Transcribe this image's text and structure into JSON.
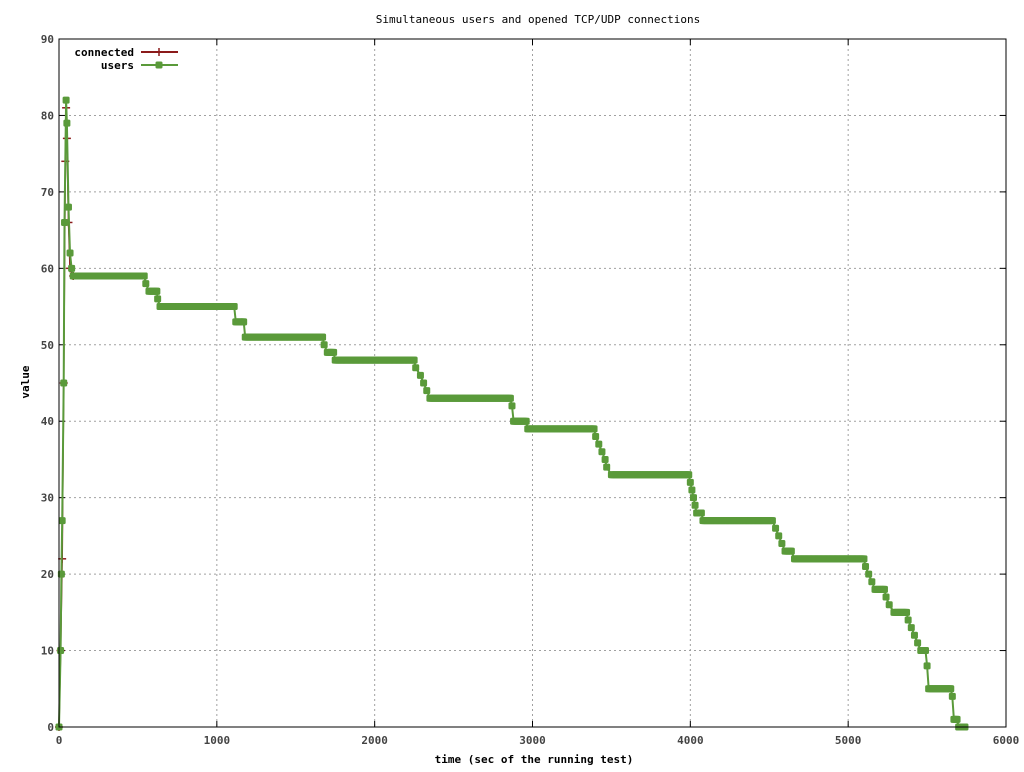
{
  "chart_data": {
    "type": "line",
    "title": "Simultaneous users and opened TCP/UDP connections",
    "xlabel": "time (sec of the running test)",
    "ylabel": "value",
    "xlim": [
      0,
      6000
    ],
    "ylim": [
      0,
      90
    ],
    "x_ticks": [
      "0",
      "1000",
      "2000",
      "3000",
      "4000",
      "5000",
      "6000"
    ],
    "y_ticks": [
      "0",
      "10",
      "20",
      "30",
      "40",
      "50",
      "60",
      "70",
      "80",
      "90"
    ],
    "grid": true,
    "legend_position": "top-left",
    "series": [
      {
        "name": "connected",
        "color": "#8b1a1a",
        "marker": "plus",
        "points": [
          [
            0,
            0
          ],
          [
            10,
            10
          ],
          [
            20,
            22
          ],
          [
            30,
            45
          ],
          [
            40,
            74
          ],
          [
            45,
            81
          ],
          [
            50,
            77
          ],
          [
            60,
            66
          ],
          [
            70,
            60
          ],
          [
            90,
            59
          ]
        ]
      },
      {
        "name": "users",
        "color": "#5a9a3a",
        "marker": "square",
        "points": [
          [
            0,
            0
          ],
          [
            10,
            10
          ],
          [
            15,
            20
          ],
          [
            20,
            27
          ],
          [
            30,
            45
          ],
          [
            35,
            66
          ],
          [
            45,
            82
          ],
          [
            50,
            79
          ],
          [
            60,
            68
          ],
          [
            70,
            62
          ],
          [
            80,
            60
          ],
          [
            90,
            59
          ],
          [
            540,
            59
          ],
          [
            550,
            58
          ],
          [
            570,
            57
          ],
          [
            620,
            57
          ],
          [
            625,
            56
          ],
          [
            640,
            55
          ],
          [
            1110,
            55
          ],
          [
            1120,
            53
          ],
          [
            1170,
            53
          ],
          [
            1180,
            51
          ],
          [
            1670,
            51
          ],
          [
            1680,
            50
          ],
          [
            1700,
            49
          ],
          [
            1740,
            49
          ],
          [
            1750,
            48
          ],
          [
            2250,
            48
          ],
          [
            2260,
            47
          ],
          [
            2290,
            46
          ],
          [
            2310,
            45
          ],
          [
            2330,
            44
          ],
          [
            2350,
            43
          ],
          [
            2860,
            43
          ],
          [
            2870,
            42
          ],
          [
            2880,
            40
          ],
          [
            2960,
            40
          ],
          [
            2970,
            39
          ],
          [
            3390,
            39
          ],
          [
            3400,
            38
          ],
          [
            3420,
            37
          ],
          [
            3440,
            36
          ],
          [
            3460,
            35
          ],
          [
            3470,
            34
          ],
          [
            3500,
            33
          ],
          [
            3990,
            33
          ],
          [
            4000,
            32
          ],
          [
            4010,
            31
          ],
          [
            4020,
            30
          ],
          [
            4030,
            29
          ],
          [
            4040,
            28
          ],
          [
            4070,
            28
          ],
          [
            4080,
            27
          ],
          [
            4520,
            27
          ],
          [
            4540,
            26
          ],
          [
            4560,
            25
          ],
          [
            4580,
            24
          ],
          [
            4600,
            23
          ],
          [
            4640,
            23
          ],
          [
            4660,
            22
          ],
          [
            5100,
            22
          ],
          [
            5110,
            21
          ],
          [
            5130,
            20
          ],
          [
            5150,
            19
          ],
          [
            5170,
            18
          ],
          [
            5230,
            18
          ],
          [
            5240,
            17
          ],
          [
            5260,
            16
          ],
          [
            5290,
            15
          ],
          [
            5370,
            15
          ],
          [
            5380,
            14
          ],
          [
            5400,
            13
          ],
          [
            5420,
            12
          ],
          [
            5440,
            11
          ],
          [
            5460,
            10
          ],
          [
            5490,
            10
          ],
          [
            5500,
            8
          ],
          [
            5510,
            5
          ],
          [
            5650,
            5
          ],
          [
            5660,
            4
          ],
          [
            5670,
            1
          ],
          [
            5690,
            1
          ],
          [
            5700,
            0
          ],
          [
            5740,
            0
          ]
        ]
      }
    ]
  }
}
